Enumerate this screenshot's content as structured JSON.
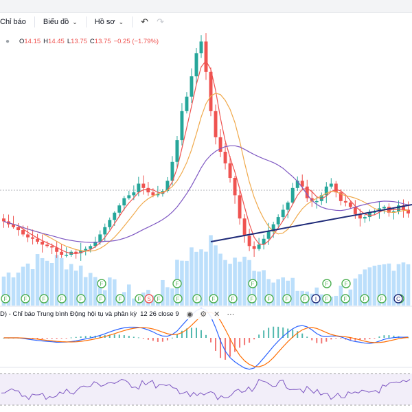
{
  "toolbar": {
    "indicators_label": "Chỉ báo",
    "chart_label": "Biểu đồ",
    "profile_label": "Hồ sơ"
  },
  "ohlc": {
    "o_label": "O",
    "o": "14.15",
    "h_label": "H",
    "h": "14.45",
    "l_label": "L",
    "l": "13.75",
    "c_label": "C",
    "c": "13.75",
    "change": "−0.25 (−1.79%)"
  },
  "macd": {
    "name": "D) - Chỉ báo Trung bình Động hội tụ và phân kỳ",
    "params": "12 26 close 9"
  },
  "colors": {
    "up": "#26a69a",
    "down": "#ef5350",
    "ma_fast": "#ef5350",
    "ma_slow": "#f0a94b",
    "ma_long": "#7e57c2",
    "trendline": "#1e2a78",
    "volume": "#90caf9",
    "flag": "#4caf50",
    "macd_line": "#2962ff",
    "signal_line": "#ff6d00",
    "rsi": "#7e57c2"
  },
  "chart_data": [
    {
      "type": "candlestick",
      "closes": [
        13.2,
        13.0,
        12.8,
        12.6,
        12.3,
        12.1,
        12.0,
        11.8,
        11.6,
        11.5,
        11.4,
        11.1,
        10.9,
        10.9,
        11.1,
        11.0,
        11.2,
        11.3,
        11.5,
        11.8,
        12.3,
        12.8,
        13.3,
        13.8,
        14.3,
        14.8,
        15.0,
        15.2,
        15.8,
        15.5,
        15.2,
        15.0,
        15.1,
        15.3,
        16.0,
        17.3,
        18.8,
        20.8,
        21.8,
        23.2,
        24.8,
        25.6,
        23.5,
        20.8,
        19.0,
        18.0,
        17.2,
        16.2,
        15.0,
        13.4,
        12.2,
        11.5,
        11.3,
        11.6,
        12.0,
        12.5,
        13.0,
        13.5,
        14.0,
        14.5,
        15.5,
        16.0,
        15.6,
        14.8,
        14.6,
        14.6,
        15.0,
        15.6,
        15.8,
        15.2,
        14.6,
        14.5,
        14.2,
        13.7,
        13.4,
        13.5,
        13.8,
        13.9,
        14.1,
        14.2,
        13.8,
        13.9,
        14.3,
        14.0,
        13.75
      ],
      "last": {
        "open": 14.15,
        "high": 14.45,
        "low": 13.75,
        "close": 13.75,
        "change": -0.25,
        "change_pct": -1.79
      },
      "overlays": [
        "MA fast",
        "MA mid",
        "MA long"
      ],
      "trendline": true,
      "grid": false
    },
    {
      "type": "bar",
      "name": "Volume",
      "events": {
        "F": 29,
        "S": 1,
        "I": 1,
        "C": 1
      }
    },
    {
      "type": "line",
      "name": "MACD",
      "params": "12 26 close 9",
      "series": [
        "macd",
        "signal",
        "histogram"
      ]
    },
    {
      "type": "line",
      "name": "RSI",
      "band": true
    }
  ]
}
